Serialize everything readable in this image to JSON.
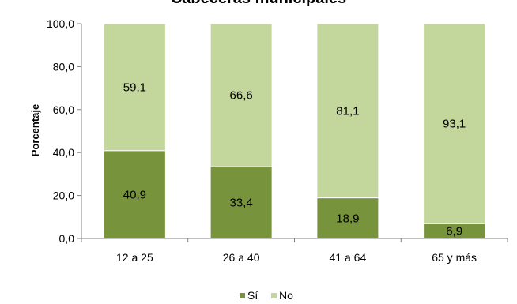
{
  "chart_data": {
    "type": "bar",
    "stacked": true,
    "title": "Cabeceras municipales",
    "xlabel": "",
    "ylabel": "Porcentaje",
    "ylim": [
      0,
      100
    ],
    "yticks": [
      "0,0",
      "20,0",
      "40,0",
      "60,0",
      "80,0",
      "100,0"
    ],
    "categories": [
      "12 a 25",
      "26 a 40",
      "41 a 64",
      "65 y más"
    ],
    "series": [
      {
        "name": "Sí",
        "color": "#77933c",
        "values": [
          40.9,
          33.4,
          18.9,
          6.9
        ],
        "labels": [
          "40,9",
          "33,4",
          "18,9",
          "6,9"
        ]
      },
      {
        "name": "No",
        "color": "#c3d69b",
        "values": [
          59.1,
          66.6,
          81.1,
          93.1
        ],
        "labels": [
          "59,1",
          "66,6",
          "81,1",
          "93,1"
        ]
      }
    ],
    "grid": false,
    "legend": "bottom"
  }
}
